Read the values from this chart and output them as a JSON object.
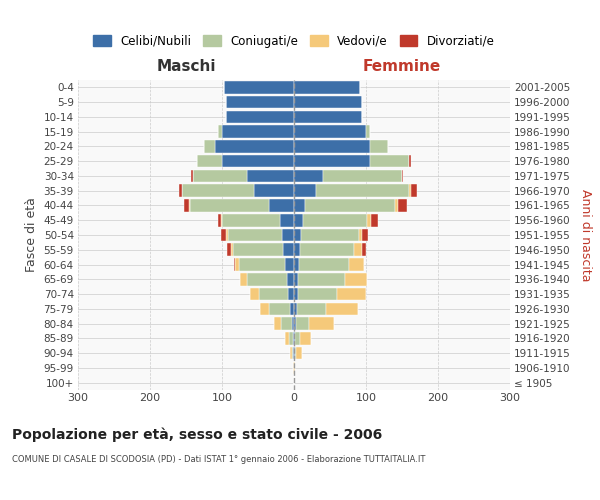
{
  "age_groups": [
    "100+",
    "95-99",
    "90-94",
    "85-89",
    "80-84",
    "75-79",
    "70-74",
    "65-69",
    "60-64",
    "55-59",
    "50-54",
    "45-49",
    "40-44",
    "35-39",
    "30-34",
    "25-29",
    "20-24",
    "15-19",
    "10-14",
    "5-9",
    "0-4"
  ],
  "birth_years": [
    "≤ 1905",
    "1906-1910",
    "1911-1915",
    "1916-1920",
    "1921-1925",
    "1926-1930",
    "1931-1935",
    "1936-1940",
    "1941-1945",
    "1946-1950",
    "1951-1955",
    "1956-1960",
    "1961-1965",
    "1966-1970",
    "1971-1975",
    "1976-1980",
    "1981-1985",
    "1986-1990",
    "1991-1995",
    "1996-2000",
    "2001-2005"
  ],
  "maschi": {
    "celibi": [
      0,
      0,
      1,
      2,
      3,
      5,
      8,
      10,
      12,
      15,
      17,
      20,
      35,
      55,
      65,
      100,
      110,
      100,
      95,
      95,
      97
    ],
    "coniugati": [
      0,
      0,
      2,
      5,
      15,
      30,
      40,
      55,
      65,
      70,
      75,
      80,
      110,
      100,
      75,
      35,
      15,
      5,
      0,
      0,
      0
    ],
    "vedovi": [
      0,
      1,
      3,
      6,
      10,
      12,
      13,
      10,
      5,
      3,
      2,
      1,
      1,
      0,
      0,
      0,
      0,
      0,
      0,
      0,
      0
    ],
    "divorziati": [
      0,
      0,
      0,
      0,
      0,
      0,
      0,
      0,
      2,
      5,
      8,
      5,
      7,
      5,
      3,
      0,
      0,
      0,
      0,
      0,
      0
    ]
  },
  "femmine": {
    "nubili": [
      0,
      0,
      1,
      2,
      3,
      4,
      5,
      6,
      7,
      8,
      10,
      12,
      15,
      30,
      40,
      105,
      105,
      100,
      95,
      95,
      92
    ],
    "coniugate": [
      0,
      0,
      2,
      6,
      18,
      40,
      55,
      65,
      70,
      75,
      80,
      90,
      125,
      130,
      110,
      55,
      25,
      5,
      0,
      0,
      0
    ],
    "vedove": [
      0,
      2,
      8,
      15,
      35,
      45,
      40,
      30,
      20,
      12,
      5,
      5,
      5,
      3,
      0,
      0,
      0,
      0,
      0,
      0,
      0
    ],
    "divorziate": [
      0,
      0,
      0,
      0,
      0,
      0,
      0,
      0,
      0,
      5,
      8,
      10,
      12,
      8,
      2,
      2,
      0,
      0,
      0,
      0,
      0
    ]
  },
  "colors": {
    "celibi": "#3d6fa8",
    "coniugati": "#b5c9a0",
    "vedovi": "#f5c97a",
    "divorziati": "#c0392b"
  },
  "xlim": 300,
  "title": "Popolazione per età, sesso e stato civile - 2006",
  "subtitle": "COMUNE DI CASALE DI SCODOSIA (PD) - Dati ISTAT 1° gennaio 2006 - Elaborazione TUTTAITALIA.IT",
  "ylabel_left": "Fasce di età",
  "ylabel_right": "Anni di nascita",
  "maschi_label": "Maschi",
  "femmine_label": "Femmine",
  "legend_labels": [
    "Celibi/Nubili",
    "Coniugati/e",
    "Vedovi/e",
    "Divorziati/e"
  ],
  "xticks": [
    -300,
    -200,
    -100,
    0,
    100,
    200,
    300
  ],
  "bg_color": "#f9f9f9",
  "grid_color": "#cccccc"
}
